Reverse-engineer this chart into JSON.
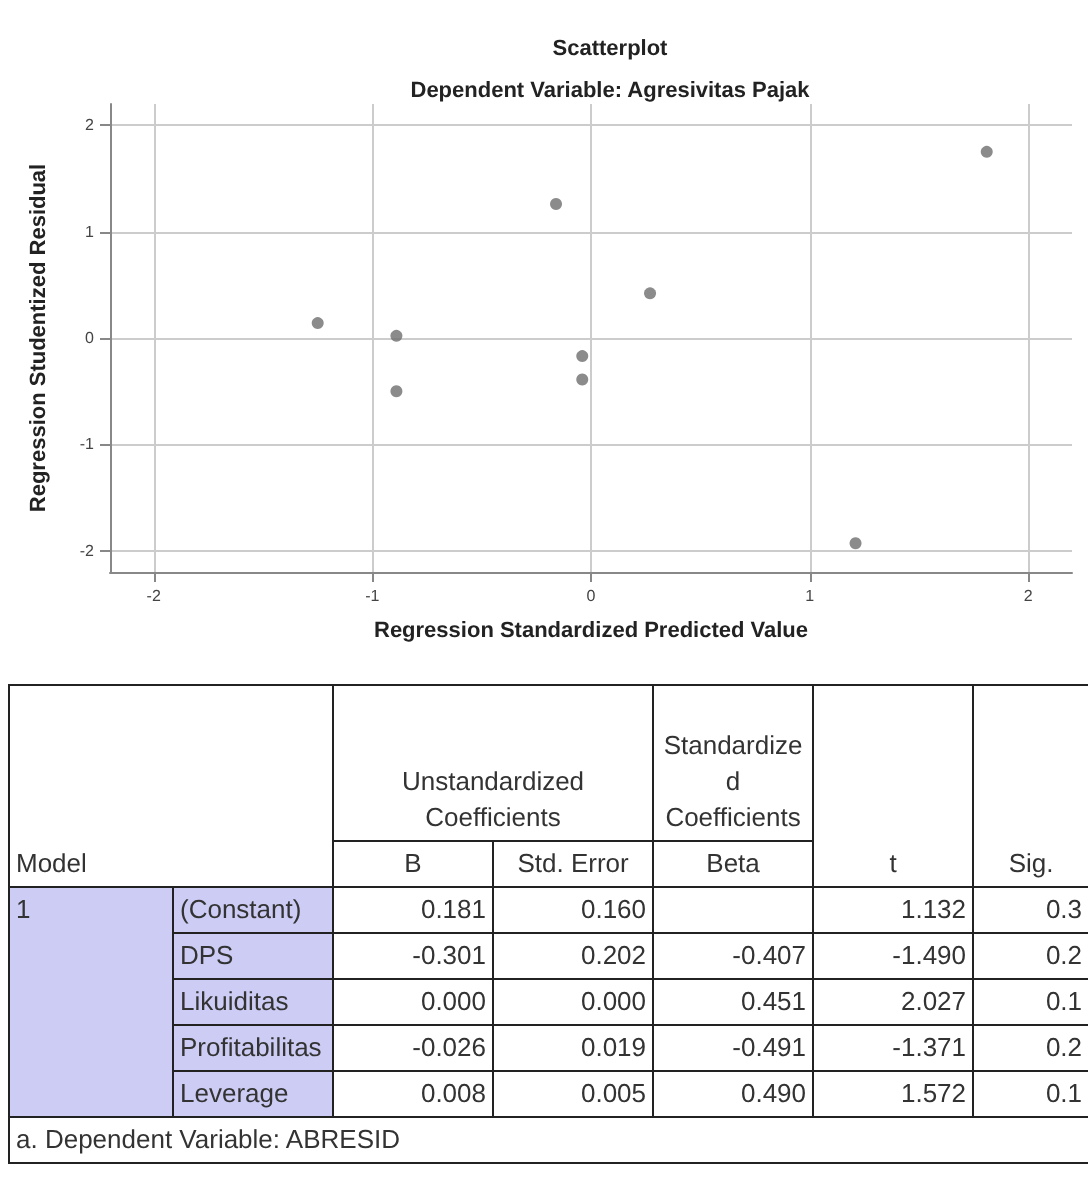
{
  "chart_data": [
    {
      "type": "scatter",
      "title": "Scatterplot",
      "subtitle": "Dependent Variable: Agresivitas Pajak",
      "xlabel": "Regression Standardized Predicted Value",
      "ylabel": "Regression Studentized Residual",
      "x": [
        -1.25,
        -0.89,
        -0.89,
        -0.16,
        -0.04,
        -0.04,
        0.27,
        1.21,
        1.81
      ],
      "values": [
        0.14,
        0.02,
        -0.5,
        1.26,
        -0.17,
        -0.39,
        0.42,
        -1.93,
        1.75
      ],
      "color": "#6e6e6e",
      "marker": "circle",
      "grid": true,
      "xlim": [
        -2.2,
        2.2
      ],
      "xticks": [
        -2,
        -1,
        0,
        1,
        2
      ],
      "ylim": [
        -2.2,
        2.2
      ],
      "yticks": [
        -2,
        -1,
        0,
        1,
        2
      ]
    },
    {
      "type": "other",
      "annotations": [
        "Model",
        "Unstandardized Coefficients",
        "Standardized Coefficients",
        "t",
        "Sig.",
        "B",
        "Std. Error",
        "Beta",
        "1",
        "(Constant)",
        "0.181",
        "0.160",
        "1.132",
        "0.3",
        "DPS",
        "-0.301",
        "0.202",
        "-0.407",
        "-1.490",
        "0.2",
        "Likuiditas",
        "0.000",
        "0.000",
        "0.451",
        "2.027",
        "0.1",
        "Profitabilitas",
        "-0.026",
        "0.019",
        "-0.491",
        "-1.371",
        "0.2",
        "Leverage",
        "0.008",
        "0.005",
        "0.490",
        "1.572",
        "0.1",
        "a. Dependent Variable: ABRESID"
      ]
    }
  ]
}
